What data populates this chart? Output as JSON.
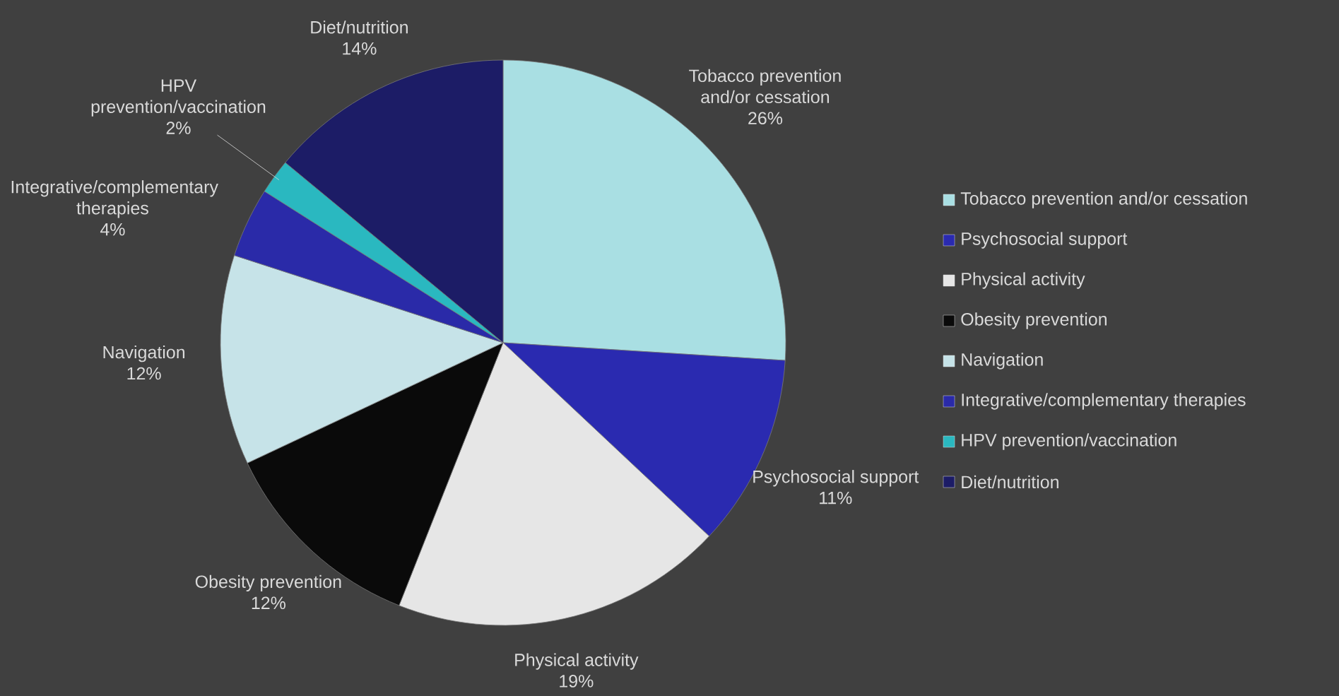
{
  "chart_data": {
    "type": "pie",
    "categories": [
      "Tobacco prevention and/or cessation",
      "Psychosocial support",
      "Physical activity",
      "Obesity prevention",
      "Navigation",
      "Integrative/complementary therapies",
      "HPV prevention/vaccination",
      "Diet/nutrition"
    ],
    "values": [
      26,
      11,
      19,
      12,
      12,
      4,
      2,
      14
    ],
    "value_labels": [
      "26%",
      "11%",
      "19%",
      "12%",
      "12%",
      "4%",
      "2%",
      "14%"
    ],
    "colors": [
      "#a9dfe3",
      "#2a2ab0",
      "#e6e6e6",
      "#0a0a0a",
      "#c6e3e8",
      "#2a2aa8",
      "#2ab8c0",
      "#1c1c66"
    ],
    "legend": "right"
  }
}
